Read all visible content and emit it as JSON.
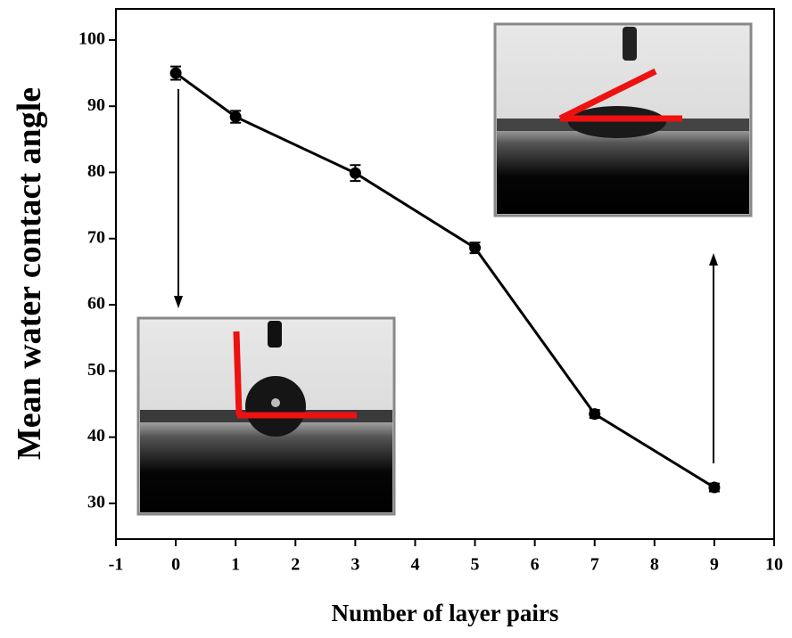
{
  "chart_data": {
    "type": "line",
    "x_label": "Number of layer pairs",
    "y_label": "Mean water contact angle",
    "x": [
      0,
      1,
      3,
      5,
      7,
      9
    ],
    "series": [
      {
        "name": "Mean water contact angle",
        "color": "#000000",
        "values": [
          95.0,
          88.4,
          79.9,
          68.6,
          43.5,
          32.4
        ],
        "errors": [
          1.0,
          0.9,
          1.2,
          0.8,
          0.6,
          0.6
        ]
      }
    ],
    "xlim": [
      -1,
      10
    ],
    "xticks": [
      -1,
      0,
      1,
      2,
      3,
      4,
      5,
      6,
      7,
      8,
      9,
      10
    ],
    "ylim": [
      24.6,
      104.7
    ],
    "yticks": [
      30,
      40,
      50,
      60,
      70,
      80,
      90,
      100
    ]
  }
}
